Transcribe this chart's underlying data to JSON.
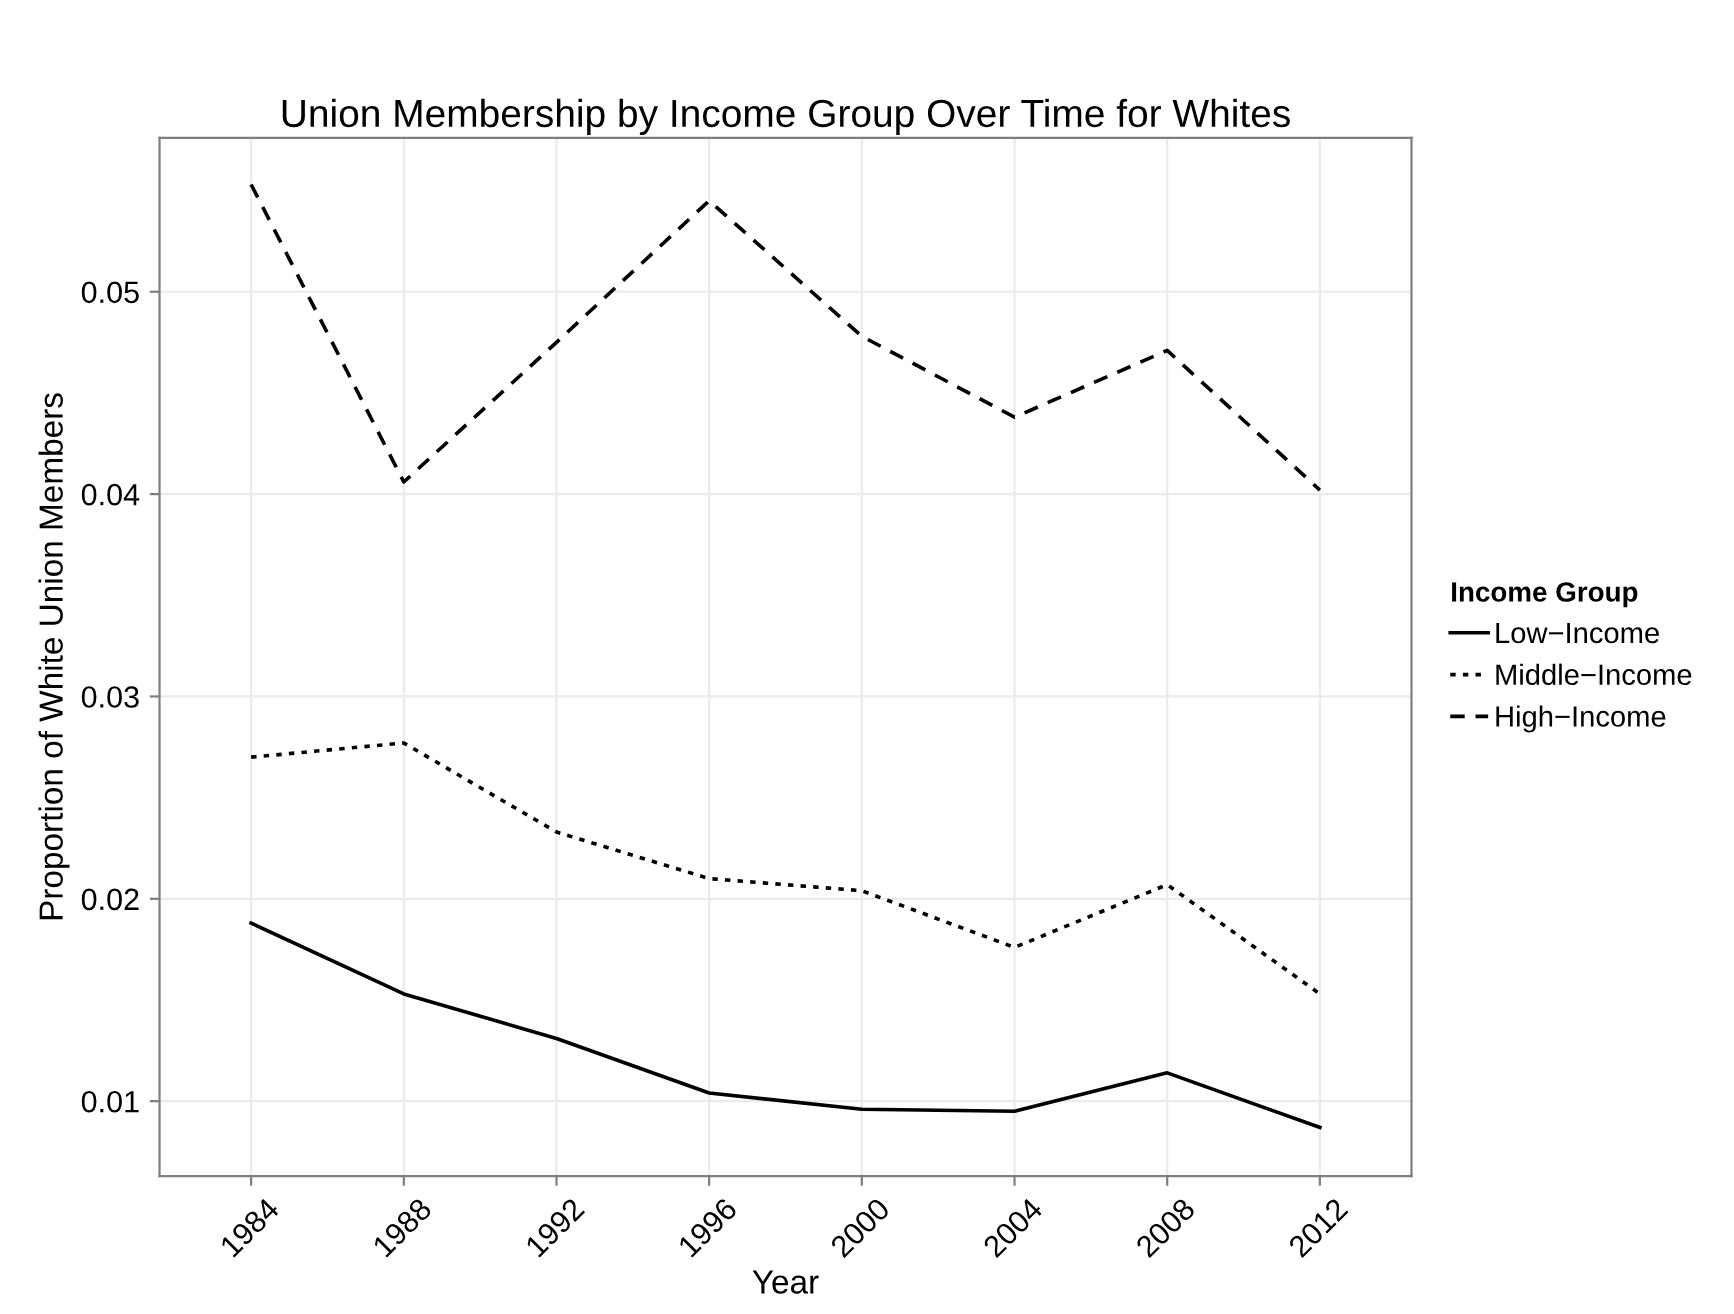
{
  "chart_data": {
    "type": "line",
    "title": "Union Membership by Income Group Over Time for Whites",
    "xlabel": "Year",
    "ylabel": "Proportion of White Union Members",
    "legend_title": "Income Group",
    "categories": [
      "1984",
      "1988",
      "1992",
      "1996",
      "2000",
      "2004",
      "2008",
      "2012"
    ],
    "series": [
      {
        "name": "Low−Income",
        "color": "#000000",
        "line_style": "solid",
        "values": [
          0.0188,
          0.0153,
          0.0131,
          0.0104,
          0.0096,
          0.0095,
          0.0114,
          0.0087
        ]
      },
      {
        "name": "Middle−Income",
        "color": "#000000",
        "line_style": "dotted",
        "values": [
          0.027,
          0.0277,
          0.0233,
          0.021,
          0.0204,
          0.0176,
          0.0207,
          0.0153
        ]
      },
      {
        "name": "High−Income",
        "color": "#000000",
        "line_style": "dashed",
        "values": [
          0.0553,
          0.0406,
          0.0475,
          0.0545,
          0.0478,
          0.0438,
          0.0471,
          0.0402
        ]
      }
    ],
    "ylim": [
      0.0063,
      0.0576
    ],
    "yticks": [
      0.01,
      0.02,
      0.03,
      0.04,
      0.05
    ],
    "grid": true,
    "legend": "right",
    "marker": "none"
  }
}
